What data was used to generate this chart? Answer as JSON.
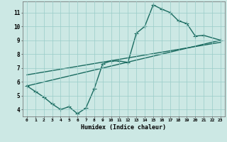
{
  "title": "",
  "xlabel": "Humidex (Indice chaleur)",
  "bg_color": "#cce8e4",
  "grid_color": "#99ccc8",
  "line_color": "#1a6b60",
  "xlim": [
    -0.5,
    23.5
  ],
  "ylim": [
    3.5,
    11.8
  ],
  "xticks": [
    0,
    1,
    2,
    3,
    4,
    5,
    6,
    7,
    8,
    9,
    10,
    11,
    12,
    13,
    14,
    15,
    16,
    17,
    18,
    19,
    20,
    21,
    22,
    23
  ],
  "yticks": [
    4,
    5,
    6,
    7,
    8,
    9,
    10,
    11
  ],
  "curve_x": [
    0,
    1,
    2,
    3,
    4,
    5,
    6,
    7,
    8,
    9,
    10,
    11,
    12,
    13,
    14,
    15,
    16,
    17,
    18,
    19,
    20,
    21,
    23
  ],
  "curve_y": [
    5.7,
    5.3,
    4.9,
    4.4,
    4.0,
    4.2,
    3.7,
    4.1,
    5.5,
    7.3,
    7.5,
    7.5,
    7.4,
    9.5,
    10.0,
    11.55,
    11.25,
    11.0,
    10.4,
    10.2,
    9.3,
    9.35,
    9.0
  ],
  "line2_x": [
    0,
    23
  ],
  "line2_y": [
    5.7,
    9.0
  ],
  "line3_x": [
    0,
    23
  ],
  "line3_y": [
    6.5,
    8.85
  ],
  "marker": "+",
  "markersize": 4,
  "linewidth": 1.0
}
